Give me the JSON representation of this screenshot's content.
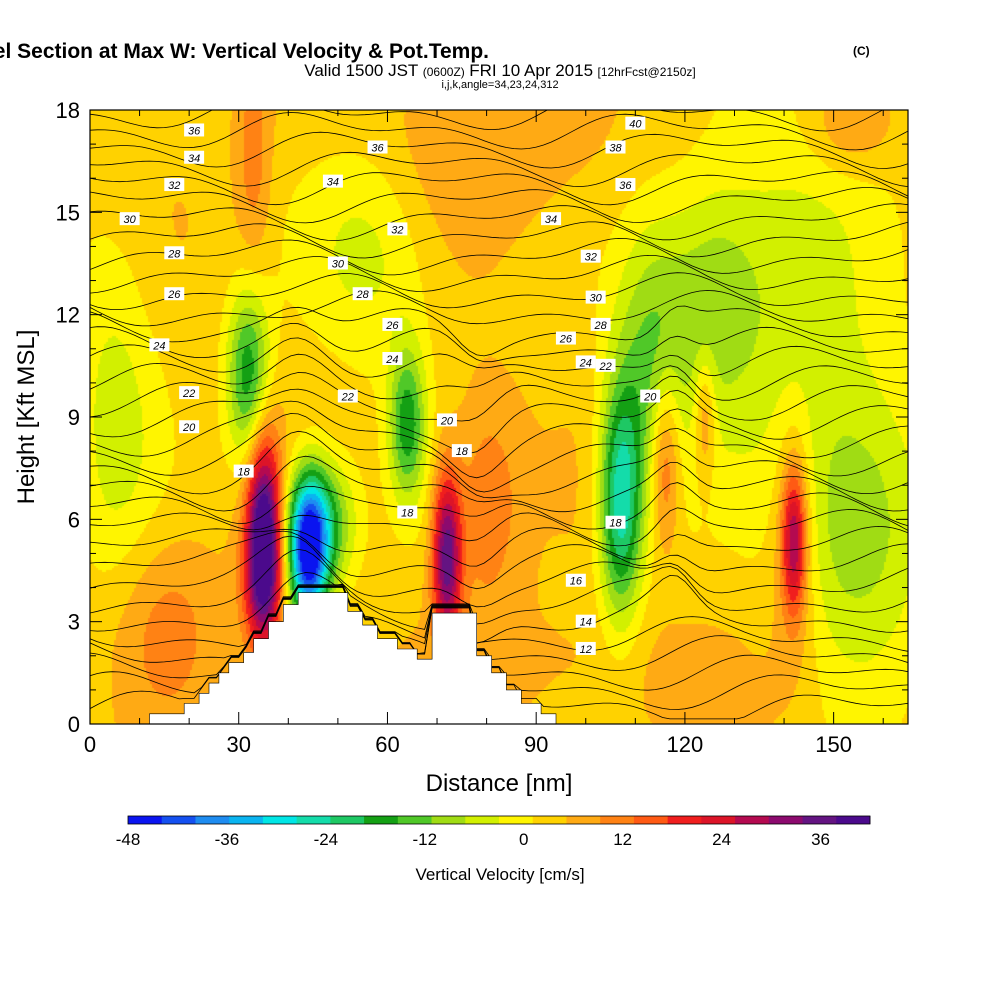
{
  "title": {
    "main": "Wind-Parallel Section at Max W: Vertical Velocity & Pot.Temp.",
    "copyright": "(C)",
    "valid_prefix": "Valid 1500 JST",
    "valid_utc": "(0600Z)",
    "valid_date": "FRI 10 Apr 2015",
    "valid_fcst": "[12hrFcst@2150z]",
    "indices": "i,j,k,angle=34,23,24,312"
  },
  "chart_data": {
    "type": "heatmap",
    "xlabel": "Distance [nm]",
    "ylabel": "Height [Kft MSL]",
    "xlim": [
      0,
      165
    ],
    "ylim": [
      0,
      18
    ],
    "x_ticks": [
      "0",
      "30",
      "60",
      "90",
      "120",
      "150"
    ],
    "y_ticks": [
      "0",
      "3",
      "6",
      "9",
      "12",
      "15",
      "18"
    ],
    "x_tick_values": [
      0,
      30,
      60,
      90,
      120,
      150
    ],
    "y_tick_values": [
      0,
      3,
      6,
      9,
      12,
      15,
      18
    ],
    "colorbar": {
      "label": "Vertical Velocity [cm/s]",
      "min": -48,
      "max": 42,
      "step": 4,
      "tick_labels": [
        "-48",
        "-36",
        "-24",
        "-12",
        "0",
        "12",
        "24",
        "36"
      ],
      "tick_values": [
        -48,
        -36,
        -24,
        -12,
        0,
        12,
        24,
        36
      ],
      "colors": [
        "#0a14f0",
        "#1450f0",
        "#1e8cf0",
        "#0ab4f0",
        "#00e6e6",
        "#14dcaa",
        "#1ec864",
        "#14a014",
        "#50c828",
        "#a0dc14",
        "#d2f000",
        "#fff500",
        "#ffd200",
        "#ffaa14",
        "#ff8214",
        "#ff5a14",
        "#f01e1e",
        "#dc1428",
        "#b40a50",
        "#8c0a6e",
        "#641482",
        "#4b0a8c"
      ]
    },
    "terrain_profile": {
      "x": [
        0,
        12,
        12,
        19,
        19,
        22,
        22,
        24,
        24,
        26,
        26,
        28,
        28,
        31,
        31,
        33,
        33,
        36,
        36,
        39,
        39,
        42,
        42,
        52,
        52,
        55,
        55,
        58,
        58,
        62,
        62,
        66,
        66,
        69,
        69,
        78,
        78,
        81,
        81,
        84,
        84,
        87,
        87,
        91,
        91,
        94,
        94,
        165
      ],
      "height": [
        0,
        0,
        0.3,
        0.3,
        0.6,
        0.6,
        0.9,
        0.9,
        1.2,
        1.2,
        1.5,
        1.5,
        1.8,
        1.8,
        2.1,
        2.1,
        2.5,
        2.5,
        3.0,
        3.0,
        3.5,
        3.5,
        3.85,
        3.85,
        3.3,
        3.3,
        2.9,
        2.9,
        2.5,
        2.5,
        2.2,
        2.2,
        1.9,
        1.9,
        3.25,
        3.25,
        2.0,
        2.0,
        1.5,
        1.5,
        1.0,
        1.0,
        0.6,
        0.6,
        0.3,
        0.3,
        0,
        0
      ]
    },
    "velocity_features": [
      {
        "x": 35,
        "y": 5.5,
        "sx": 2.4,
        "sy": 2.1,
        "value": 40
      },
      {
        "x": 35,
        "y": 4.2,
        "sx": 3.2,
        "sy": 1.3,
        "value": 10
      },
      {
        "x": 44,
        "y": 5.0,
        "sx": 2.8,
        "sy": 1.5,
        "value": -46
      },
      {
        "x": 47,
        "y": 5.9,
        "sx": 4.5,
        "sy": 1.3,
        "value": -20
      },
      {
        "x": 72,
        "y": 4.9,
        "sx": 2.0,
        "sy": 1.7,
        "value": 32
      },
      {
        "x": 80,
        "y": 6.5,
        "sx": 5.0,
        "sy": 2.3,
        "value": 9
      },
      {
        "x": 142,
        "y": 5.4,
        "sx": 1.7,
        "sy": 1.5,
        "value": 24
      },
      {
        "x": 142,
        "y": 5.4,
        "sx": 3.5,
        "sy": 2.8,
        "value": 8
      },
      {
        "x": 116,
        "y": 7.8,
        "sx": 2.2,
        "sy": 1.8,
        "value": 16
      },
      {
        "x": 124,
        "y": 9.0,
        "sx": 1.5,
        "sy": 1.3,
        "value": 11
      },
      {
        "x": 107,
        "y": 6.5,
        "sx": 3.0,
        "sy": 2.4,
        "value": -28
      },
      {
        "x": 113,
        "y": 10.2,
        "sx": 5.0,
        "sy": 3.0,
        "value": -14
      },
      {
        "x": 125,
        "y": 12.5,
        "sx": 7.0,
        "sy": 2.5,
        "value": -11
      },
      {
        "x": 155,
        "y": 6.0,
        "sx": 10.0,
        "sy": 3.0,
        "value": -14
      },
      {
        "x": 32,
        "y": 10.2,
        "sx": 3.0,
        "sy": 1.8,
        "value": -22
      },
      {
        "x": 64,
        "y": 8.8,
        "sx": 2.6,
        "sy": 1.6,
        "value": -20
      },
      {
        "x": 57,
        "y": 14.0,
        "sx": 9.0,
        "sy": 2.5,
        "value": -8
      },
      {
        "x": 140,
        "y": 13.0,
        "sx": 12.0,
        "sy": 4.0,
        "value": -8
      },
      {
        "x": 5,
        "y": 9.0,
        "sx": 6.0,
        "sy": 4.0,
        "value": -8
      },
      {
        "x": 33,
        "y": 16.5,
        "sx": 2.5,
        "sy": 2.5,
        "value": 8
      },
      {
        "x": 15,
        "y": 3.0,
        "sx": 8.0,
        "sy": 2.0,
        "value": 7
      },
      {
        "x": 100,
        "y": 1.5,
        "sx": 25.0,
        "sy": 1.5,
        "value": 3
      },
      {
        "x": 153,
        "y": 17.5,
        "sx": 6.0,
        "sy": 1.0,
        "value": 7
      },
      {
        "x": 80,
        "y": 17.0,
        "sx": 20.0,
        "sy": 2.0,
        "value": 5
      }
    ],
    "contour_labels": [
      {
        "text": "36",
        "x": 21,
        "y": 17.4
      },
      {
        "text": "34",
        "x": 21,
        "y": 16.6
      },
      {
        "text": "32",
        "x": 17,
        "y": 15.8
      },
      {
        "text": "30",
        "x": 8,
        "y": 14.8
      },
      {
        "text": "28",
        "x": 17,
        "y": 13.8
      },
      {
        "text": "26",
        "x": 17,
        "y": 12.6
      },
      {
        "text": "24",
        "x": 14,
        "y": 11.1
      },
      {
        "text": "22",
        "x": 20,
        "y": 9.7
      },
      {
        "text": "20",
        "x": 20,
        "y": 8.7
      },
      {
        "text": "18",
        "x": 31,
        "y": 7.4
      },
      {
        "text": "36",
        "x": 58,
        "y": 16.9
      },
      {
        "text": "34",
        "x": 49,
        "y": 15.9
      },
      {
        "text": "32",
        "x": 62,
        "y": 14.5
      },
      {
        "text": "30",
        "x": 50,
        "y": 13.5
      },
      {
        "text": "28",
        "x": 55,
        "y": 12.6
      },
      {
        "text": "26",
        "x": 61,
        "y": 11.7
      },
      {
        "text": "24",
        "x": 61,
        "y": 10.7
      },
      {
        "text": "22",
        "x": 52,
        "y": 9.6
      },
      {
        "text": "20",
        "x": 72,
        "y": 8.9
      },
      {
        "text": "18",
        "x": 75,
        "y": 8.0
      },
      {
        "text": "18",
        "x": 64,
        "y": 6.2
      },
      {
        "text": "40",
        "x": 110,
        "y": 17.6
      },
      {
        "text": "38",
        "x": 106,
        "y": 16.9
      },
      {
        "text": "36",
        "x": 108,
        "y": 15.8
      },
      {
        "text": "34",
        "x": 93,
        "y": 14.8
      },
      {
        "text": "32",
        "x": 101,
        "y": 13.7
      },
      {
        "text": "30",
        "x": 102,
        "y": 12.5
      },
      {
        "text": "28",
        "x": 103,
        "y": 11.7
      },
      {
        "text": "26",
        "x": 96,
        "y": 11.3
      },
      {
        "text": "24",
        "x": 100,
        "y": 10.6
      },
      {
        "text": "22",
        "x": 104,
        "y": 10.5
      },
      {
        "text": "20",
        "x": 113,
        "y": 9.6
      },
      {
        "text": "18",
        "x": 106,
        "y": 5.9
      },
      {
        "text": "16",
        "x": 98,
        "y": 4.2
      },
      {
        "text": "14",
        "x": 100,
        "y": 3.0
      },
      {
        "text": "12",
        "x": 100,
        "y": 2.2
      }
    ]
  }
}
